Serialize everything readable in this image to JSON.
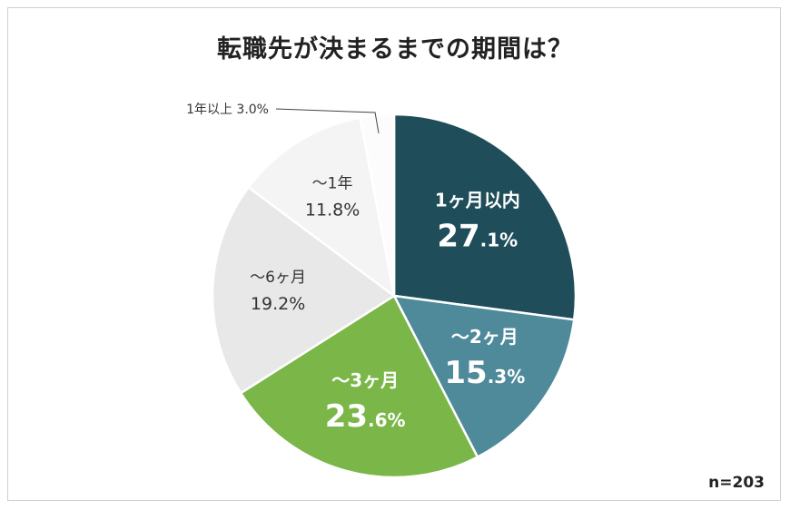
{
  "colors": {
    "seg1": "#1f4e5a",
    "seg2": "#4f8a9a",
    "seg3": "#7ab648",
    "seg4": "#e8e8e8",
    "seg5": "#f4f4f4",
    "seg6": "#fcfcfc"
  },
  "chart_data": {
    "type": "pie",
    "title": "転職先が決まるまでの期間は？",
    "sample_size": "n=203",
    "slices": [
      {
        "label": "1ヶ月以内",
        "value": 27.1,
        "int_part": "27",
        "dec_part": ".1%",
        "style": "dark"
      },
      {
        "label": "～2ヶ月",
        "value": 15.3,
        "int_part": "15",
        "dec_part": ".3%",
        "style": "dark"
      },
      {
        "label": "～3ヶ月",
        "value": 23.6,
        "int_part": "23",
        "dec_part": ".6%",
        "style": "dark"
      },
      {
        "label": "～6ヶ月",
        "value": 19.2,
        "text": "19.2%",
        "style": "light"
      },
      {
        "label": "～1年",
        "value": 11.8,
        "text": "11.8%",
        "style": "light"
      },
      {
        "label": "1年以上",
        "value": 3.0,
        "text": "1年以上 3.0%",
        "style": "callout"
      }
    ]
  }
}
